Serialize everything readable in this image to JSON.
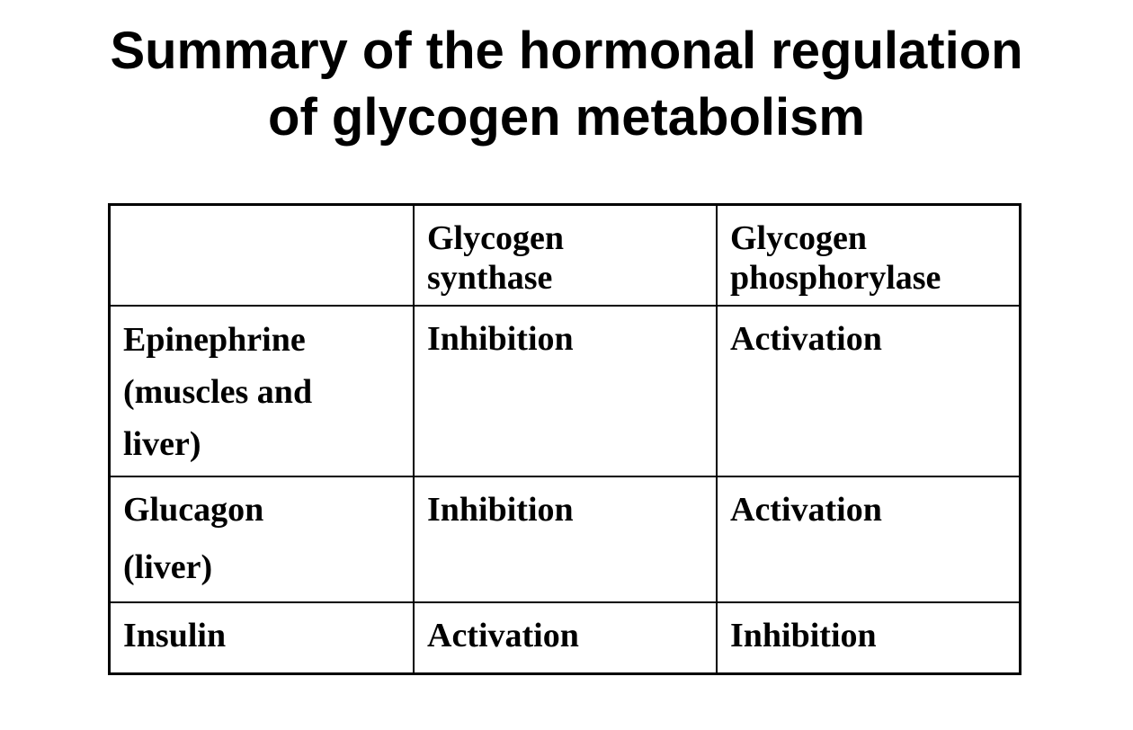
{
  "title": "Summary of the hormonal regulation\nof glycogen metabolism",
  "table": {
    "headers": [
      "",
      "Glycogen\nsynthase",
      "Glycogen\nphosphorylase"
    ],
    "rows": [
      [
        "Epinephrine\n(muscles and\nliver)",
        "Inhibition",
        "Activation"
      ],
      [
        "Glucagon\n(liver)",
        "Inhibition",
        "Activation"
      ],
      [
        "Insulin",
        "Activation",
        "Inhibition"
      ]
    ]
  }
}
